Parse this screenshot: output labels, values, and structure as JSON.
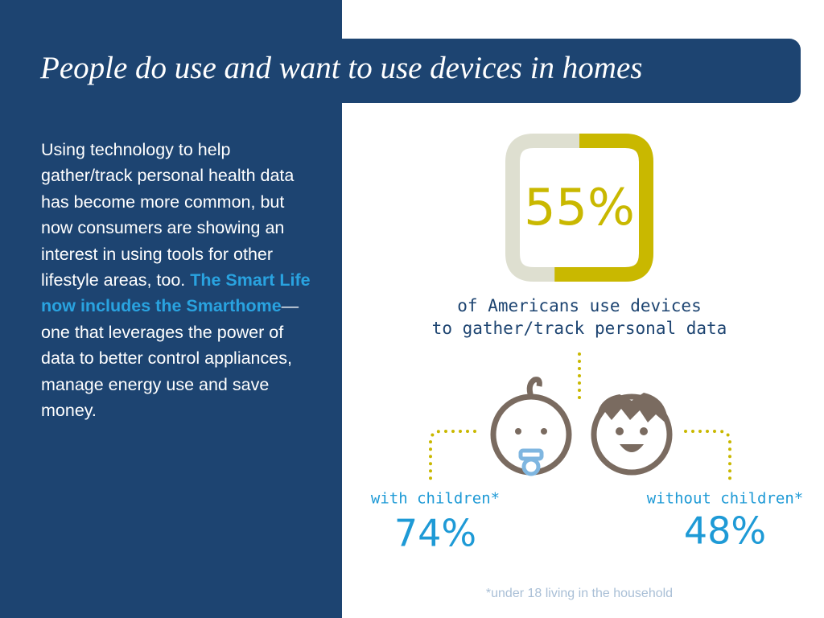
{
  "title": "People do use and want to use devices in homes",
  "body": {
    "before": "Using technology to help gather/track personal health data has become more common, but now consumers are showing an interest in using tools for other lifestyle areas, too. ",
    "highlight": "The Smart Life now includes the Smarthome",
    "after": "— one that leverages the power of data to better control appliances, manage energy use and save money."
  },
  "gauge": {
    "value": 55,
    "label": "55%",
    "color": "#c9b800",
    "track_color": "#dedfd0"
  },
  "gauge_caption": [
    "of Americans use devices",
    "to gather/track personal data"
  ],
  "groups": [
    {
      "label": "with children*",
      "stat": "74%"
    },
    {
      "label": "without children*",
      "stat": "48%"
    }
  ],
  "footnote": "*under 18 living in the household"
}
